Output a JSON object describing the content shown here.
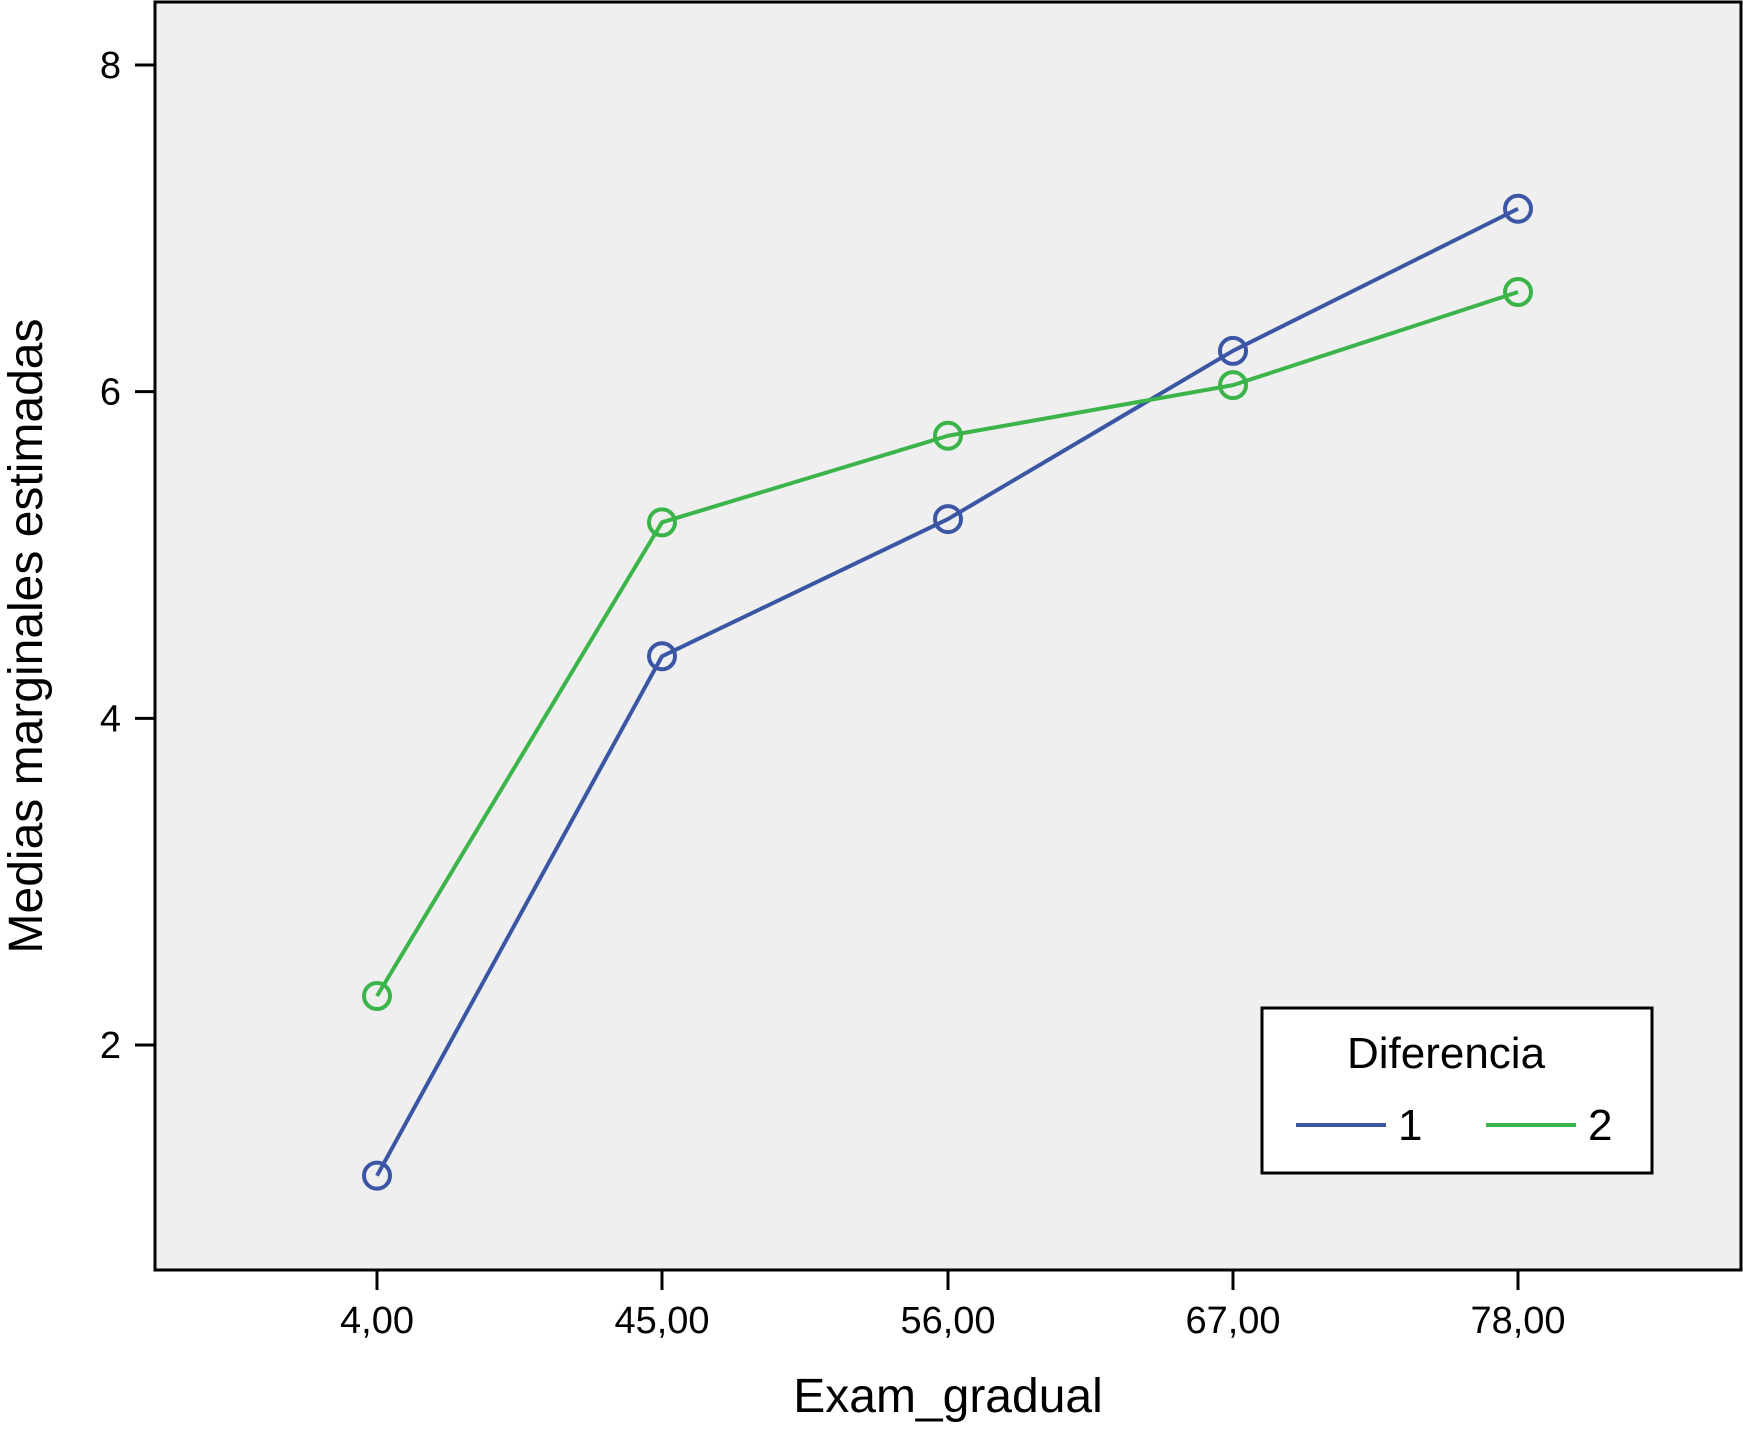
{
  "chart_data": {
    "type": "line",
    "title": "",
    "xlabel": "Exam_gradual",
    "ylabel": "Medias marginales estimadas",
    "categories": [
      "4,00",
      "45,00",
      "56,00",
      "67,00",
      "78,00"
    ],
    "y_ticks": [
      "2",
      "4",
      "6",
      "8"
    ],
    "ylim": [
      0.6,
      8.4
    ],
    "grid": false,
    "legend": {
      "title": "Diferencia",
      "placement": "bottom-right"
    },
    "series": [
      {
        "name": "1",
        "color": "#3a56a4",
        "values": [
          1.2,
          4.38,
          5.22,
          6.25,
          7.12
        ]
      },
      {
        "name": "2",
        "color": "#3bb44a",
        "values": [
          2.3,
          5.2,
          5.73,
          6.04,
          6.61
        ]
      }
    ],
    "marker": "circle-open",
    "plot_background": "#efefef"
  }
}
